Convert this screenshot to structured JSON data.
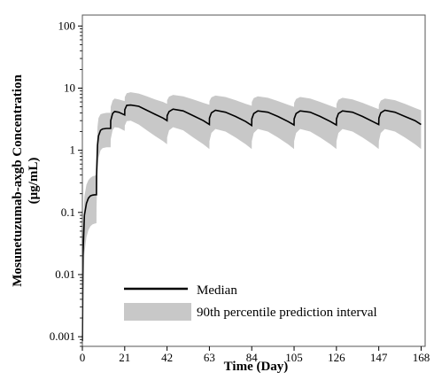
{
  "chart_data": {
    "type": "line",
    "xlabel": "Time (Day)",
    "ylabel_line1": "Mosunetuzumab-axgb Concentration",
    "ylabel_line2": "(μg/mL)",
    "x_scale": "linear",
    "y_scale": "log",
    "xlim": [
      0,
      170
    ],
    "ylim": [
      0.0007,
      150
    ],
    "x_ticks": [
      0,
      21,
      42,
      63,
      84,
      105,
      126,
      147,
      168
    ],
    "y_ticks": [
      0.001,
      0.01,
      0.1,
      1,
      10,
      100
    ],
    "y_tick_labels": [
      "0.001",
      "0.01",
      "0.1",
      "1",
      "10",
      "100"
    ],
    "grid": false,
    "legend_position": "bottom-left",
    "colors": {
      "median": "#000000",
      "interval": "#c8c8c8"
    },
    "series": [
      {
        "name": "Median",
        "x": [
          0.05,
          0.3,
          1,
          2,
          3,
          4,
          5,
          6,
          7,
          7.05,
          7.5,
          8,
          9,
          10,
          12,
          14,
          14.05,
          15,
          16,
          18,
          21,
          21.05,
          22,
          24,
          28,
          32,
          36,
          40,
          42,
          42.05,
          43,
          45,
          50,
          55,
          60,
          63,
          63.05,
          64,
          66,
          71,
          76,
          81,
          84,
          84.05,
          85,
          87,
          92,
          97,
          102,
          105,
          105.05,
          106,
          108,
          113,
          118,
          123,
          126,
          126.05,
          127,
          129,
          134,
          139,
          144,
          147,
          147.05,
          148,
          150,
          155,
          160,
          165,
          168
        ],
        "values": [
          0.00085,
          0.02,
          0.09,
          0.14,
          0.17,
          0.185,
          0.19,
          0.192,
          0.193,
          0.4,
          1.2,
          1.7,
          2.1,
          2.2,
          2.25,
          2.25,
          3.0,
          3.9,
          4.2,
          4.1,
          3.7,
          4.5,
          5.3,
          5.35,
          5.1,
          4.4,
          3.8,
          3.3,
          3.0,
          3.6,
          4.2,
          4.6,
          4.3,
          3.6,
          3.0,
          2.6,
          3.3,
          4.0,
          4.4,
          4.1,
          3.5,
          2.9,
          2.5,
          3.2,
          3.9,
          4.3,
          4.1,
          3.5,
          2.9,
          2.55,
          3.2,
          3.9,
          4.3,
          4.1,
          3.5,
          2.9,
          2.55,
          3.2,
          3.9,
          4.3,
          4.1,
          3.5,
          2.9,
          2.6,
          3.3,
          4.0,
          4.4,
          4.1,
          3.5,
          3.0,
          2.6
        ]
      },
      {
        "name": "90th percentile prediction interval",
        "x": [
          0.3,
          1,
          2,
          3,
          4,
          5,
          6,
          7,
          7.05,
          7.5,
          8,
          9,
          10,
          12,
          14,
          14.05,
          15,
          16,
          18,
          21,
          21.05,
          22,
          24,
          28,
          32,
          36,
          40,
          42,
          42.05,
          43,
          45,
          50,
          55,
          60,
          63,
          63.05,
          64,
          66,
          71,
          76,
          81,
          84,
          84.05,
          85,
          87,
          92,
          97,
          102,
          105,
          105.05,
          106,
          108,
          113,
          118,
          123,
          126,
          126.05,
          127,
          129,
          134,
          139,
          144,
          147,
          147.05,
          148,
          150,
          155,
          160,
          165,
          168
        ],
        "upper": [
          0.05,
          0.18,
          0.28,
          0.33,
          0.36,
          0.38,
          0.39,
          0.4,
          0.9,
          2.4,
          3.3,
          3.8,
          3.9,
          4.0,
          4.0,
          5.0,
          6.3,
          6.8,
          6.6,
          6.2,
          7.2,
          8.3,
          8.6,
          8.2,
          7.4,
          6.6,
          6.0,
          5.6,
          6.4,
          7.3,
          7.8,
          7.4,
          6.6,
          5.8,
          5.4,
          6.2,
          7.1,
          7.6,
          7.2,
          6.4,
          5.6,
          5.2,
          6.0,
          6.9,
          7.4,
          7.0,
          6.2,
          5.4,
          5.0,
          5.8,
          6.7,
          7.2,
          6.8,
          6.0,
          5.2,
          4.8,
          5.6,
          6.5,
          7.0,
          6.6,
          5.8,
          5.0,
          4.6,
          5.4,
          6.3,
          6.8,
          6.4,
          5.6,
          4.8,
          4.4
        ],
        "lower": [
          0.004,
          0.022,
          0.04,
          0.052,
          0.06,
          0.064,
          0.066,
          0.067,
          0.12,
          0.45,
          0.75,
          1.0,
          1.08,
          1.12,
          1.12,
          1.5,
          2.1,
          2.35,
          2.3,
          2.05,
          2.5,
          2.95,
          3.0,
          2.6,
          2.1,
          1.7,
          1.4,
          1.25,
          1.6,
          2.1,
          2.35,
          2.1,
          1.6,
          1.25,
          1.05,
          1.4,
          1.9,
          2.2,
          2.0,
          1.6,
          1.25,
          1.05,
          1.4,
          1.9,
          2.2,
          2.0,
          1.6,
          1.25,
          1.05,
          1.4,
          1.9,
          2.2,
          2.0,
          1.6,
          1.25,
          1.05,
          1.4,
          1.9,
          2.2,
          2.0,
          1.6,
          1.25,
          1.05,
          1.4,
          1.9,
          2.2,
          2.0,
          1.6,
          1.25,
          1.05
        ]
      }
    ]
  }
}
